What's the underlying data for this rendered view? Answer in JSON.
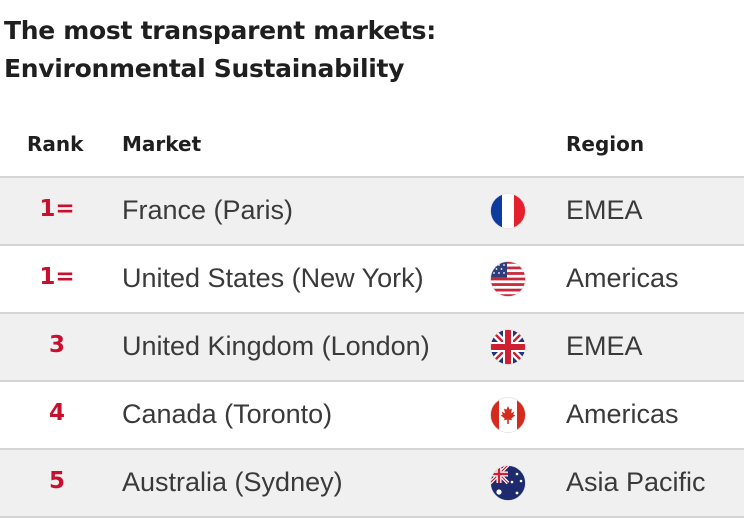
{
  "title": {
    "line1": "The most transparent markets:",
    "line2": "Environmental Sustainability"
  },
  "columns": {
    "rank": "Rank",
    "market": "Market",
    "region": "Region"
  },
  "rows": [
    {
      "rank": "1=",
      "market": "France (Paris)",
      "flag": "france-flag-icon",
      "region": "EMEA"
    },
    {
      "rank": "1=",
      "market": "United States (New York)",
      "flag": "usa-flag-icon",
      "region": "Americas"
    },
    {
      "rank": "3",
      "market": "United Kingdom (London)",
      "flag": "uk-flag-icon",
      "region": "EMEA"
    },
    {
      "rank": "4",
      "market": "Canada (Toronto)",
      "flag": "canada-flag-icon",
      "region": "Americas"
    },
    {
      "rank": "5",
      "market": "Australia (Sydney)",
      "flag": "australia-flag-icon",
      "region": "Asia Pacific"
    }
  ],
  "colors": {
    "rank_accent": "#c8102e",
    "shaded_row": "#f0f0f0",
    "divider": "#d4d4d4"
  }
}
